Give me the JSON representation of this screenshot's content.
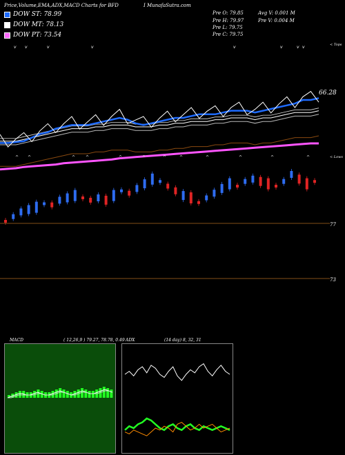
{
  "header": {
    "title": "Price,Volume,EMA,ADX,MACD Charts for BFD",
    "site": "I MunafaSutra.com"
  },
  "legend": [
    {
      "label": "DOW ST: 78.99",
      "color": "#1e6bff"
    },
    {
      "label": "DOW MT: 78.13",
      "color": "#ffffff"
    },
    {
      "label": "DOW PT: 73.54",
      "color": "#ff66ff"
    }
  ],
  "info": {
    "prev_open": "Pre O: 79.85",
    "prev_high": "Pre H: 79.97",
    "prev_low": "Pre L: 79.75",
    "prev_close": "Pre C: 79.75",
    "avg_volume": "Avg V: 0.001 M",
    "prev_volume": "Pre V: 0.004 M"
  },
  "price_labels": {
    "last": "66.28",
    "top_tag": "< Tops",
    "low_tag": "< Lows",
    "level_a": "77",
    "level_b": "73"
  },
  "macd": {
    "label": "MACD",
    "params": "( 12,26,9 ) 79.27, 78.78, 0.49"
  },
  "adx": {
    "label": "ADX",
    "params": "(14 day) 8, 32, 31"
  },
  "colors": {
    "up": "#2e6cf0",
    "down": "#e02424",
    "ema_short": "#1e6bff",
    "ema_mid": "#ffffff",
    "ema_long": "#8a4a10",
    "ema_pt": "#ff55ff",
    "macd_panel": "#0a4d0a",
    "macd_hist": "#22ff22",
    "level": "#b06a20",
    "adx_pdi": "#22ff22",
    "adx_mdi": "#ff8c00"
  },
  "chart_data": [
    {
      "type": "line",
      "series": [
        {
          "name": "DOW ST: 78.99",
          "values": [
            2,
            2,
            3,
            4,
            8,
            12,
            14,
            18,
            20,
            22,
            22,
            22,
            24,
            26,
            28,
            30,
            28,
            24,
            22,
            24,
            26,
            28,
            30,
            30,
            32,
            34,
            34,
            34,
            36,
            38,
            38,
            38,
            36,
            38,
            40,
            42,
            44,
            46,
            50,
            50,
            52
          ]
        },
        {
          "name": "DOW MT: 78.13",
          "values": [
            4,
            4,
            4,
            6,
            8,
            10,
            12,
            14,
            16,
            18,
            18,
            18,
            20,
            20,
            22,
            22,
            22,
            20,
            20,
            20,
            22,
            22,
            24,
            24,
            26,
            26,
            26,
            28,
            28,
            30,
            30,
            30,
            28,
            30,
            30,
            32,
            34,
            36,
            36,
            36,
            38
          ]
        },
        {
          "name": "DOW PT: 73.54",
          "values": [
            -42,
            -41,
            -40,
            -38,
            -37,
            -36,
            -35,
            -34,
            -32,
            -31,
            -30,
            -29,
            -28,
            -27,
            -26,
            -24,
            -23,
            -22,
            -21,
            -20,
            -19,
            -18,
            -17,
            -16,
            -15,
            -14,
            -13,
            -12,
            -11,
            -10,
            -9,
            -8,
            -7,
            -6,
            -5,
            -4,
            -3,
            -2,
            -1,
            0,
            0
          ]
        }
      ]
    },
    {
      "type": "bar",
      "name": "candles",
      "direction": [
        -1,
        1,
        1,
        1,
        1,
        1,
        -1,
        1,
        1,
        1,
        -1,
        -1,
        1,
        -1,
        1,
        1,
        -1,
        1,
        1,
        1,
        1,
        -1,
        -1,
        1,
        -1,
        -1,
        1,
        1,
        1,
        1,
        -1,
        1,
        1,
        -1,
        -1,
        -1,
        1,
        1,
        -1,
        -1,
        -1
      ],
      "close": [
        30,
        34,
        38,
        40,
        42,
        45,
        44,
        48,
        50,
        52,
        50,
        48,
        50,
        48,
        52,
        56,
        54,
        58,
        62,
        66,
        64,
        60,
        56,
        52,
        50,
        46,
        50,
        54,
        58,
        62,
        60,
        64,
        66,
        64,
        62,
        60,
        64,
        70,
        66,
        62,
        64
      ]
    },
    {
      "type": "line",
      "name": "MACD",
      "series": [
        {
          "name": "MACD",
          "values": [
            0,
            1,
            2,
            3,
            3,
            2,
            2,
            3,
            4,
            3,
            2,
            2,
            3,
            4,
            5,
            4,
            3,
            2,
            3,
            4,
            5,
            4,
            3,
            3,
            4,
            5,
            6,
            5,
            4
          ]
        },
        {
          "name": "Signal",
          "values": [
            0,
            0,
            1,
            2,
            2,
            2,
            2,
            2,
            3,
            3,
            2,
            2,
            2,
            3,
            4,
            4,
            3,
            2,
            2,
            3,
            4,
            4,
            3,
            3,
            3,
            4,
            5,
            5,
            4
          ]
        }
      ]
    },
    {
      "type": "line",
      "name": "ADX",
      "series": [
        {
          "name": "ADX",
          "values": [
            60,
            64,
            58,
            66,
            70,
            62,
            72,
            68,
            60,
            56,
            64,
            70,
            58,
            52,
            60,
            66,
            62,
            70,
            74,
            64,
            58,
            66,
            72,
            64,
            60
          ]
        },
        {
          "name": "+DI",
          "values": [
            18,
            22,
            20,
            24,
            26,
            30,
            28,
            24,
            20,
            18,
            22,
            24,
            20,
            18,
            22,
            24,
            20,
            18,
            22,
            20,
            18,
            20,
            22,
            20,
            18
          ]
        },
        {
          "name": "-DI",
          "values": [
            16,
            14,
            18,
            16,
            14,
            12,
            16,
            20,
            18,
            22,
            20,
            16,
            24,
            26,
            22,
            18,
            20,
            24,
            20,
            22,
            24,
            20,
            16,
            18,
            20
          ]
        }
      ]
    }
  ]
}
